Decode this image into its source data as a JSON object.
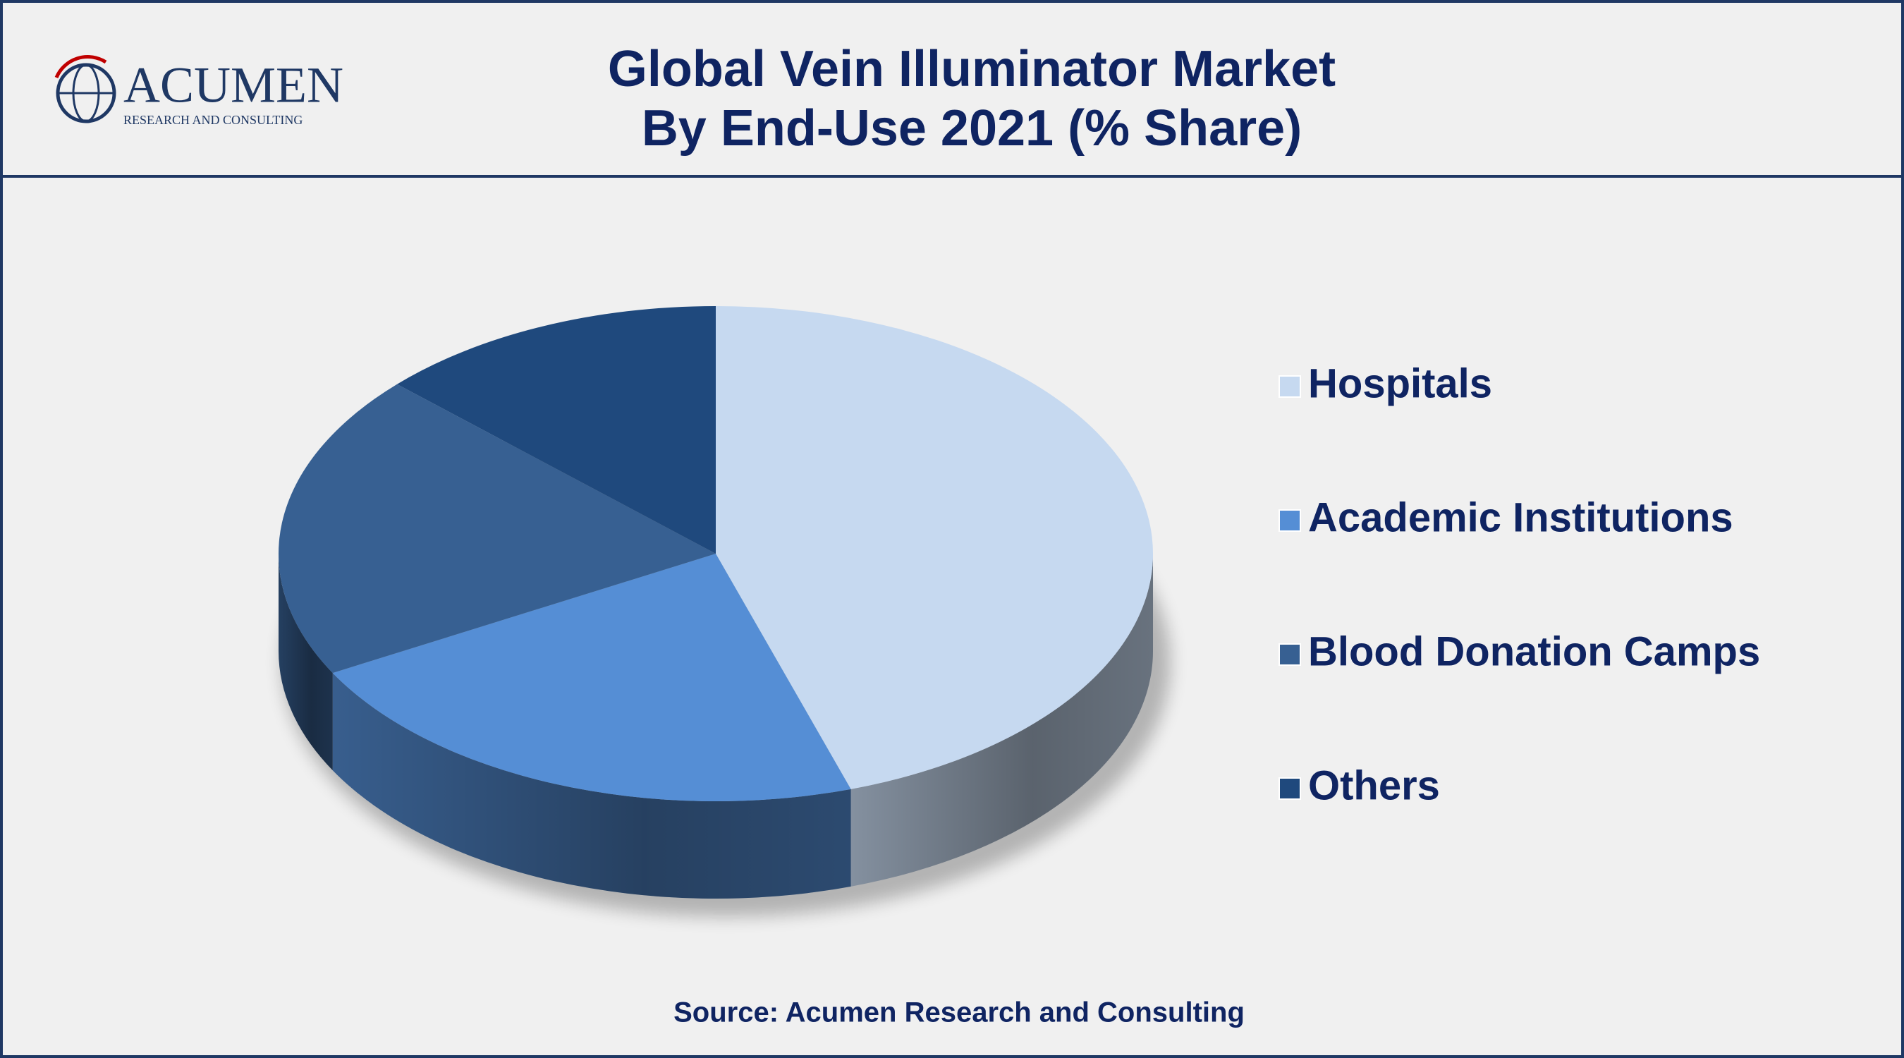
{
  "logo": {
    "name": "ACUMEN",
    "tagline": "RESEARCH AND CONSULTING"
  },
  "chart_data": {
    "type": "pie",
    "title": [
      "Global Vein Illuminator Market",
      "By End-Use 2021 (% Share)"
    ],
    "categories": [
      "Hospitals",
      "Academic Institutions",
      "Blood Donation Camps",
      "Others"
    ],
    "values": [
      45,
      22,
      20,
      13
    ],
    "colors": [
      "#c6d9f0",
      "#558ed5",
      "#376092",
      "#1f497d"
    ],
    "legend": "right",
    "source": "Source: Acumen Research and Consulting"
  }
}
